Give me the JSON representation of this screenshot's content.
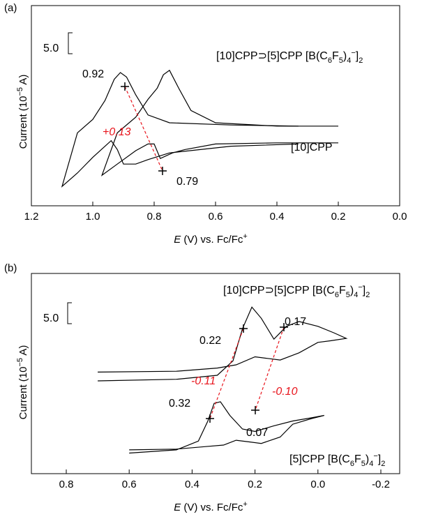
{
  "chart_data": [
    {
      "panel_label": "(a)",
      "type": "line",
      "title": "",
      "xlabel_italic": "E",
      "xlabel_rest": " (V) vs. Fc/Fc",
      "xlabel_sup": "+",
      "ylabel_main": "Current (10",
      "ylabel_sup": "−5",
      "ylabel_end": " A)",
      "xlim": [
        1.2,
        0.0
      ],
      "x_reversed": true,
      "x_ticks": [
        "1.2",
        "1.0",
        "0.8",
        "0.6",
        "0.4",
        "0.2",
        "0.0"
      ],
      "x_tick_values": [
        1.2,
        1.0,
        0.8,
        0.6,
        0.4,
        0.2,
        0.0
      ],
      "scale_bar_label": "5.0",
      "series": [
        {
          "name": "[10]CPP⊃[5]CPP [B(C6F5)4−]2",
          "label_parts": [
            "[10]CPP⊃[5]CPP [B(C",
            "6",
            "F",
            "5",
            ")",
            "4",
            "−",
            "]",
            "2"
          ],
          "x": [
            0.33,
            0.55,
            0.75,
            0.82,
            0.86,
            0.89,
            0.91,
            0.93,
            0.96,
            1.0,
            1.05,
            1.1,
            1.05,
            1.0,
            0.96,
            0.94,
            0.92,
            0.9,
            0.86,
            0.82,
            0.75,
            0.55,
            0.33
          ],
          "y": [
            1.2,
            1.3,
            1.5,
            2.2,
            4.0,
            5.6,
            6.0,
            5.4,
            3.5,
            1.8,
            0.6,
            -4.2,
            -3.0,
            -1.6,
            -0.6,
            -0.1,
            -0.9,
            -2.2,
            -2.2,
            -1.8,
            -1.2,
            -0.6,
            -0.4
          ]
        },
        {
          "name": "[10]CPP",
          "label_parts": [
            "[10]CPP"
          ],
          "x": [
            0.2,
            0.4,
            0.6,
            0.68,
            0.72,
            0.75,
            0.77,
            0.79,
            0.82,
            0.86,
            0.92,
            0.97,
            0.92,
            0.86,
            0.82,
            0.8,
            0.78,
            0.74,
            0.7,
            0.6,
            0.4,
            0.2
          ],
          "y": [
            1.2,
            1.2,
            1.5,
            2.6,
            4.6,
            6.2,
            5.8,
            4.6,
            3.6,
            2.0,
            0.6,
            -3.2,
            -2.2,
            -1.0,
            -0.4,
            -0.4,
            -1.7,
            -1.2,
            -0.9,
            -0.4,
            -0.3,
            -0.3
          ]
        }
      ],
      "annotations": [
        {
          "text": "0.92",
          "x": 0.92
        },
        {
          "text": "0.79",
          "x": 0.79
        },
        {
          "text": "+0.13",
          "color": "#e8141c",
          "italic": true
        }
      ],
      "half_wave_markers": [
        {
          "x": 0.915,
          "y_axis_value": 2.3,
          "series": 0
        },
        {
          "x": 0.79,
          "y_axis_value": 0.4,
          "series": 1
        }
      ]
    },
    {
      "panel_label": "(b)",
      "type": "line",
      "title": "",
      "xlabel_italic": "E",
      "xlabel_rest": " (V) vs. Fc/Fc",
      "xlabel_sup": "+",
      "ylabel_main": "Current (10",
      "ylabel_sup": "−5",
      "ylabel_end": " A)",
      "xlim": [
        0.9,
        -0.3
      ],
      "x_reversed": true,
      "x_ticks": [
        "0.8",
        "0.6",
        "0.4",
        "0.2",
        "0.0",
        "-0.2"
      ],
      "x_tick_values": [
        0.8,
        0.6,
        0.4,
        0.2,
        0.0,
        -0.2
      ],
      "scale_bar_label": "5.0",
      "series": [
        {
          "name": "[10]CPP⊃[5]CPP [B(C6F5)4−]2",
          "label_parts": [
            "[10]CPP⊃[5]CPP [B(C",
            "6",
            "F",
            "5",
            ")",
            "4",
            "−",
            "]",
            "2"
          ],
          "x": [
            0.7,
            0.45,
            0.32,
            0.27,
            0.24,
            0.21,
            0.18,
            0.14,
            0.1,
            0.06,
            0.0,
            -0.05,
            -0.09,
            -0.04,
            0.0,
            0.06,
            0.12,
            0.16,
            0.2,
            0.26,
            0.32,
            0.45,
            0.7
          ],
          "y": [
            -4.0,
            -3.8,
            -3.3,
            -1.5,
            2.5,
            5.2,
            3.8,
            1.2,
            2.8,
            3.4,
            2.8,
            2.0,
            1.3,
            1.0,
            0.8,
            -0.5,
            -1.4,
            -1.2,
            -1.0,
            -2.0,
            -2.4,
            -2.8,
            -2.9
          ]
        },
        {
          "name": "[5]CPP [B(C6F5)4−]2",
          "label_parts": [
            "[5]CPP [B(C",
            "6",
            "F",
            "5",
            ")",
            "4",
            "−",
            "]",
            "2"
          ],
          "x": [
            0.6,
            0.45,
            0.38,
            0.35,
            0.33,
            0.31,
            0.28,
            0.24,
            0.2,
            0.14,
            0.08,
            0.02,
            -0.02,
            0.02,
            0.08,
            0.12,
            0.18,
            0.22,
            0.26,
            0.3,
            0.36,
            0.45,
            0.6
          ],
          "y": [
            -13.0,
            -12.6,
            -11.5,
            -9.0,
            -6.8,
            -6.6,
            -8.3,
            -10.0,
            -10.3,
            -9.6,
            -9.0,
            -8.6,
            -8.3,
            -8.7,
            -9.4,
            -11.0,
            -11.8,
            -11.6,
            -11.4,
            -12.0,
            -12.2,
            -12.5,
            -12.6
          ]
        }
      ],
      "annotations": [
        {
          "text": "0.17",
          "x": 0.17
        },
        {
          "text": "0.22",
          "x": 0.22
        },
        {
          "text": "-0.11",
          "color": "#e8141c",
          "italic": true
        },
        {
          "text": "-0.10",
          "color": "#e8141c",
          "italic": true
        },
        {
          "text": "0.32",
          "x": 0.32
        },
        {
          "text": "0.07",
          "x": 0.07
        }
      ],
      "half_wave_markers": [
        {
          "x": 0.225,
          "series": 0
        },
        {
          "x": 0.09,
          "series": 0
        },
        {
          "x": 0.335,
          "series": 1
        },
        {
          "x": 0.18,
          "series": 1
        }
      ]
    }
  ]
}
